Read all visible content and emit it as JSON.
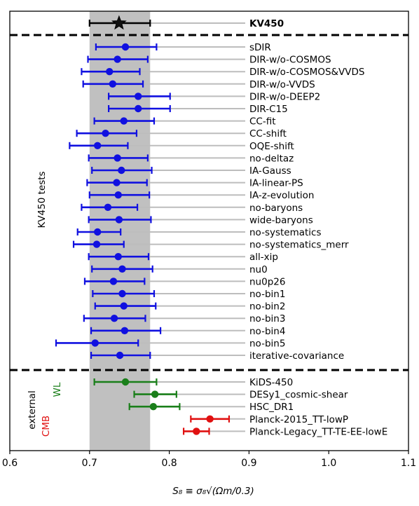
{
  "chart_data": {
    "type": "scatter",
    "title": "",
    "xlabel": "S₈ ≡ σ₈√(Ωm/0.3)",
    "xlim": [
      0.6,
      1.1
    ],
    "xticks": [
      "0.6",
      "0.7",
      "0.8",
      "0.9",
      "1.0",
      "1.1"
    ],
    "shaded_band": [
      0.7,
      0.776
    ],
    "group_labels": {
      "tests": "KV450 tests",
      "external": "external",
      "cmb": "CMB",
      "wl": "WL"
    },
    "colors": {
      "reference": "#000000",
      "tests": "#1010e0",
      "wl": "#1a7f1a",
      "cmb": "#e01010",
      "band": "#c0c0c0",
      "guide": "#bdbdbd"
    },
    "reference": {
      "label": "KV450",
      "value": 0.737,
      "low": 0.7,
      "high": 0.776
    },
    "tests": [
      {
        "label": "sDIR",
        "value": 0.745,
        "low": 0.708,
        "high": 0.784
      },
      {
        "label": "DIR-w/o-COSMOS",
        "value": 0.735,
        "low": 0.698,
        "high": 0.773
      },
      {
        "label": "DIR-w/o-COSMOS&VVDS",
        "value": 0.725,
        "low": 0.69,
        "high": 0.763
      },
      {
        "label": "DIR-w/o-VVDS",
        "value": 0.729,
        "low": 0.692,
        "high": 0.767
      },
      {
        "label": "DIR-w/o-DEEP2",
        "value": 0.761,
        "low": 0.724,
        "high": 0.801
      },
      {
        "label": "DIR-C15",
        "value": 0.761,
        "low": 0.724,
        "high": 0.801
      },
      {
        "label": "CC-fit",
        "value": 0.743,
        "low": 0.706,
        "high": 0.781
      },
      {
        "label": "CC-shift",
        "value": 0.72,
        "low": 0.684,
        "high": 0.759
      },
      {
        "label": "OQE-shift",
        "value": 0.71,
        "low": 0.675,
        "high": 0.748
      },
      {
        "label": "no-deltaz",
        "value": 0.735,
        "low": 0.699,
        "high": 0.773
      },
      {
        "label": "IA-Gauss",
        "value": 0.74,
        "low": 0.703,
        "high": 0.778
      },
      {
        "label": "IA-linear-PS",
        "value": 0.734,
        "low": 0.697,
        "high": 0.772
      },
      {
        "label": "IA-z-evolution",
        "value": 0.736,
        "low": 0.7,
        "high": 0.775
      },
      {
        "label": "no-baryons",
        "value": 0.723,
        "low": 0.69,
        "high": 0.76
      },
      {
        "label": "wide-baryons",
        "value": 0.737,
        "low": 0.699,
        "high": 0.777
      },
      {
        "label": "no-systematics",
        "value": 0.71,
        "low": 0.685,
        "high": 0.739
      },
      {
        "label": "no-systematics_merr",
        "value": 0.709,
        "low": 0.68,
        "high": 0.743
      },
      {
        "label": "all-xip",
        "value": 0.736,
        "low": 0.699,
        "high": 0.774
      },
      {
        "label": "nu0",
        "value": 0.741,
        "low": 0.703,
        "high": 0.779
      },
      {
        "label": "nu0p26",
        "value": 0.73,
        "low": 0.694,
        "high": 0.769
      },
      {
        "label": "no-bin1",
        "value": 0.741,
        "low": 0.704,
        "high": 0.781
      },
      {
        "label": "no-bin2",
        "value": 0.743,
        "low": 0.707,
        "high": 0.783
      },
      {
        "label": "no-bin3",
        "value": 0.731,
        "low": 0.693,
        "high": 0.77
      },
      {
        "label": "no-bin4",
        "value": 0.744,
        "low": 0.702,
        "high": 0.789
      },
      {
        "label": "no-bin5",
        "value": 0.707,
        "low": 0.658,
        "high": 0.761
      },
      {
        "label": "iterative-covariance",
        "value": 0.738,
        "low": 0.702,
        "high": 0.776
      }
    ],
    "external": [
      {
        "label": "KiDS-450",
        "value": 0.745,
        "low": 0.706,
        "high": 0.784,
        "group": "wl"
      },
      {
        "label": "DESy1_cosmic-shear",
        "value": 0.782,
        "low": 0.756,
        "high": 0.809,
        "group": "wl"
      },
      {
        "label": "HSC_DR1",
        "value": 0.78,
        "low": 0.75,
        "high": 0.813,
        "group": "wl"
      },
      {
        "label": "Planck-2015_TT-lowP",
        "value": 0.851,
        "low": 0.827,
        "high": 0.875,
        "group": "cmb"
      },
      {
        "label": "Planck-Legacy_TT-TE-EE-lowE",
        "value": 0.834,
        "low": 0.818,
        "high": 0.85,
        "group": "cmb"
      }
    ]
  }
}
